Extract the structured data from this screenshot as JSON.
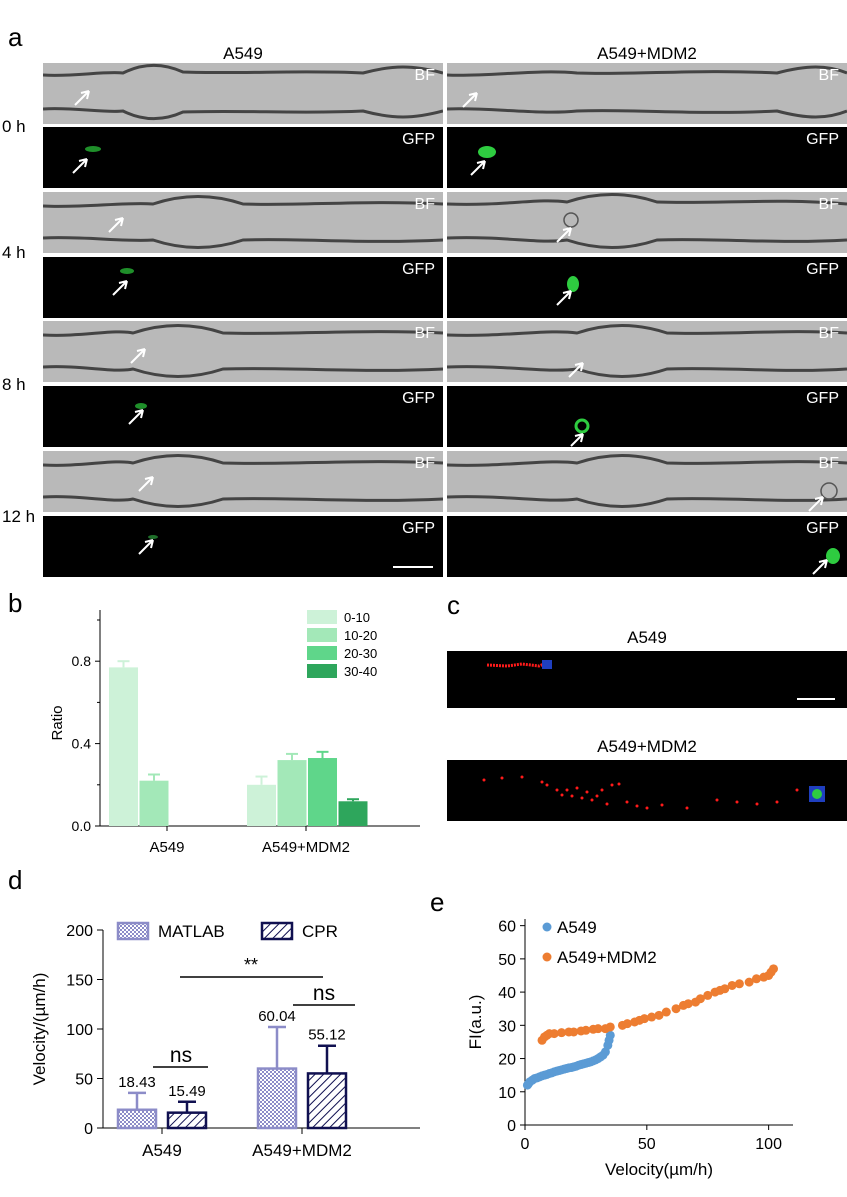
{
  "figure": {
    "panel_labels": {
      "a": "a",
      "b": "b",
      "c": "c",
      "d": "d",
      "e": "e"
    },
    "panel_a": {
      "columns": [
        "A549",
        "A549+MDM2"
      ],
      "time_labels": [
        "0 h",
        "4 h",
        "8 h",
        "12 h"
      ],
      "bf_tag": "BF",
      "gfp_tag": "GFP",
      "colors": {
        "gfp_cell": "#2ecc40",
        "background": "#000000",
        "bf_background": "#b9b9b9"
      }
    },
    "panel_c": {
      "titles": [
        "A549",
        "A549+MDM2"
      ],
      "colors": {
        "track": "#ff1a1a",
        "cell": "#1f3fbf"
      }
    }
  },
  "chart_b": {
    "type": "bar",
    "ylabel": "Ratio",
    "categories": [
      "A549",
      "A549+MDM2"
    ],
    "yticks": [
      "0.0",
      "0.4",
      "0.8"
    ],
    "ylim": [
      0,
      1.0
    ],
    "legend_position": "top-right",
    "series": [
      {
        "name": "0-10",
        "color": "#cdf2d8",
        "values": [
          0.77,
          0.2
        ],
        "errors": [
          0.03,
          0.04
        ]
      },
      {
        "name": "10-20",
        "color": "#a3e8b8",
        "values": [
          0.22,
          0.32
        ],
        "errors": [
          0.03,
          0.03
        ]
      },
      {
        "name": "20-30",
        "color": "#5fd68a",
        "values": [
          0.0,
          0.33
        ],
        "errors": [
          0.0,
          0.03
        ]
      },
      {
        "name": "30-40",
        "color": "#2ea65c",
        "values": [
          0.0,
          0.12
        ],
        "errors": [
          0.0,
          0.01
        ]
      }
    ]
  },
  "chart_d": {
    "type": "bar",
    "ylabel": "Velocity/(µm/h)",
    "categories": [
      "A549",
      "A549+MDM2"
    ],
    "yticks": [
      "0",
      "50",
      "100",
      "150",
      "200"
    ],
    "ylim": [
      0,
      200
    ],
    "legend_position": "top",
    "series": [
      {
        "name": "MATLAB",
        "color": "#8c8cc8",
        "values": [
          18.43,
          60.04
        ],
        "errors": [
          17,
          42
        ],
        "labels": [
          "18.43",
          "60.04"
        ]
      },
      {
        "name": "CPR",
        "color": "#101050",
        "values": [
          15.49,
          55.12
        ],
        "errors": [
          11,
          28
        ],
        "labels": [
          "15.49",
          "55.12"
        ]
      }
    ],
    "annotations": {
      "ns_a549": "ns",
      "ns_mdm2": "ns",
      "between": "**"
    }
  },
  "chart_e": {
    "type": "scatter",
    "xlabel": "Velocity(µm/h)",
    "ylabel": "FI(a.u.)",
    "xticks": [
      "0",
      "50",
      "100"
    ],
    "yticks": [
      "0",
      "10",
      "20",
      "30",
      "40",
      "50",
      "60"
    ],
    "xlim": [
      0,
      110
    ],
    "ylim": [
      0,
      62
    ],
    "legend_position": "top-left",
    "series": [
      {
        "name": "A549",
        "color": "#5b9bd5",
        "x": [
          1,
          1.5,
          2,
          3,
          4,
          5,
          6,
          7,
          8,
          9,
          10,
          11,
          12,
          13,
          14,
          15,
          16,
          17,
          18,
          19,
          20,
          21,
          22,
          23,
          24,
          25,
          26,
          27,
          28,
          29,
          30,
          31,
          32,
          33,
          34,
          34.5,
          35
        ],
        "y": [
          12,
          12.5,
          13,
          13.5,
          14,
          14.2,
          14.5,
          14.8,
          15,
          15.2,
          15.5,
          15.7,
          16,
          16.2,
          16.4,
          16.6,
          16.8,
          17,
          17.2,
          17.3,
          17.5,
          17.7,
          18,
          18.2,
          18.4,
          18.6,
          18.8,
          19,
          19.3,
          19.6,
          20,
          20.5,
          21,
          22,
          24,
          25.5,
          27
        ]
      },
      {
        "name": "A549+MDM2",
        "color": "#ed7d31",
        "x": [
          7,
          8,
          9,
          10,
          12,
          15,
          18,
          20,
          23,
          25,
          28,
          30,
          33,
          35,
          40,
          42,
          45,
          47,
          49,
          52,
          55,
          58,
          62,
          65,
          67,
          70,
          72,
          75,
          78,
          80,
          82,
          85,
          88,
          92,
          95,
          98,
          100,
          101,
          102
        ],
        "y": [
          25.5,
          26.5,
          27,
          27.5,
          27.5,
          27.8,
          28,
          28,
          28.3,
          28.5,
          28.8,
          29,
          29,
          29.5,
          30,
          30.5,
          31,
          31.5,
          32,
          32.5,
          33,
          34,
          35,
          36,
          36.5,
          37,
          38,
          39,
          40,
          40.5,
          41,
          42,
          42.5,
          43,
          44,
          44.5,
          45,
          46,
          47
        ]
      }
    ]
  }
}
